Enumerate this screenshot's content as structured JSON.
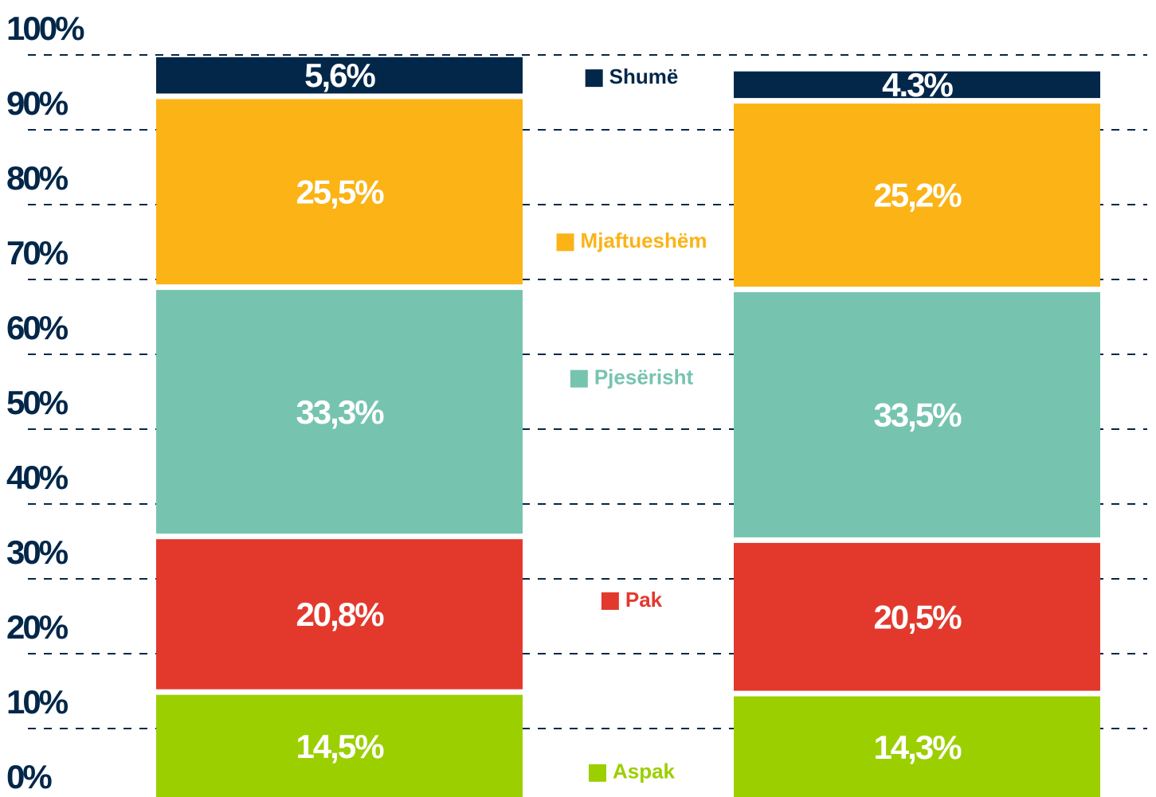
{
  "chart_data": {
    "type": "bar",
    "stacked": true,
    "categories": [
      null,
      null
    ],
    "series": [
      {
        "name": "Aspak",
        "color": "#9bcf00",
        "values": [
          14.5,
          14.3
        ],
        "value_labels": [
          "14,5%",
          "14,3%"
        ]
      },
      {
        "name": "Pak",
        "color": "#e3392d",
        "values": [
          20.8,
          20.5
        ],
        "value_labels": [
          "20,8%",
          "20,5%"
        ]
      },
      {
        "name": "Pjesërisht",
        "color": "#76c4b0",
        "values": [
          33.3,
          33.5
        ],
        "value_labels": [
          "33,3%",
          "33,5%"
        ]
      },
      {
        "name": "Mjaftueshëm",
        "color": "#fbb316",
        "values": [
          25.5,
          25.2
        ],
        "value_labels": [
          "25,5%",
          "25,2%"
        ]
      },
      {
        "name": "Shumë",
        "color": "#022749",
        "values": [
          5.6,
          4.3
        ],
        "value_labels": [
          "5,6%",
          "4.3%"
        ]
      }
    ],
    "ylim": [
      0,
      100
    ],
    "yticks": [
      {
        "value": 0,
        "label": "0%"
      },
      {
        "value": 10,
        "label": "10%"
      },
      {
        "value": 20,
        "label": "20%"
      },
      {
        "value": 30,
        "label": "30%"
      },
      {
        "value": 40,
        "label": "40%"
      },
      {
        "value": 50,
        "label": "50%"
      },
      {
        "value": 60,
        "label": "60%"
      },
      {
        "value": 70,
        "label": "70%"
      },
      {
        "value": 80,
        "label": "80%"
      },
      {
        "value": 90,
        "label": "90%"
      },
      {
        "value": 100,
        "label": "100%"
      }
    ],
    "grid": true
  }
}
